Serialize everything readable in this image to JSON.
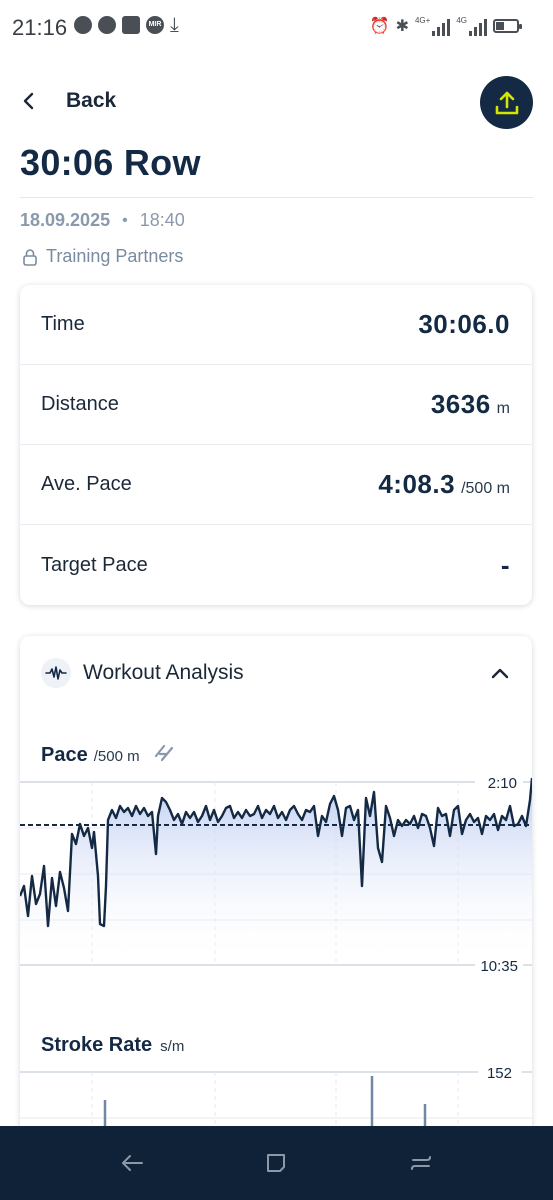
{
  "status_bar": {
    "time": "21:16",
    "network_labels": [
      "4G+",
      "4G"
    ],
    "icons_left": [
      "chat-bubble-icon",
      "chat-bubble-icon",
      "puzzle-icon",
      "mir-icon",
      "download-icon"
    ],
    "icons_right": [
      "alarm-icon",
      "bluetooth-icon",
      "signal-icon",
      "signal-icon",
      "battery-icon"
    ]
  },
  "header": {
    "back_label": "Back",
    "share_icon": "upload-icon"
  },
  "workout": {
    "title": "30:06 Row",
    "date": "18.09.2025",
    "separator": "•",
    "time": "18:40",
    "privacy": "Training Partners"
  },
  "stats": [
    {
      "label": "Time",
      "value": "30:06.0",
      "unit": ""
    },
    {
      "label": "Distance",
      "value": "3636",
      "unit": "m"
    },
    {
      "label": "Ave. Pace",
      "value": "4:08.3",
      "unit": "/500 m"
    },
    {
      "label": "Target Pace",
      "value": "-",
      "unit": ""
    }
  ],
  "analysis": {
    "title": "Workout Analysis",
    "pace": {
      "label": "Pace",
      "unit": "/500 m",
      "y_top_label": "2:10",
      "y_bottom_label": "10:35"
    },
    "stroke_rate": {
      "label": "Stroke Rate",
      "unit": "s/m",
      "y_top_label": "152"
    }
  },
  "colors": {
    "primary": "#142a44",
    "accent": "#d4e600",
    "chart_fill": "#c9d6f4",
    "navbar": "#0f2238"
  }
}
